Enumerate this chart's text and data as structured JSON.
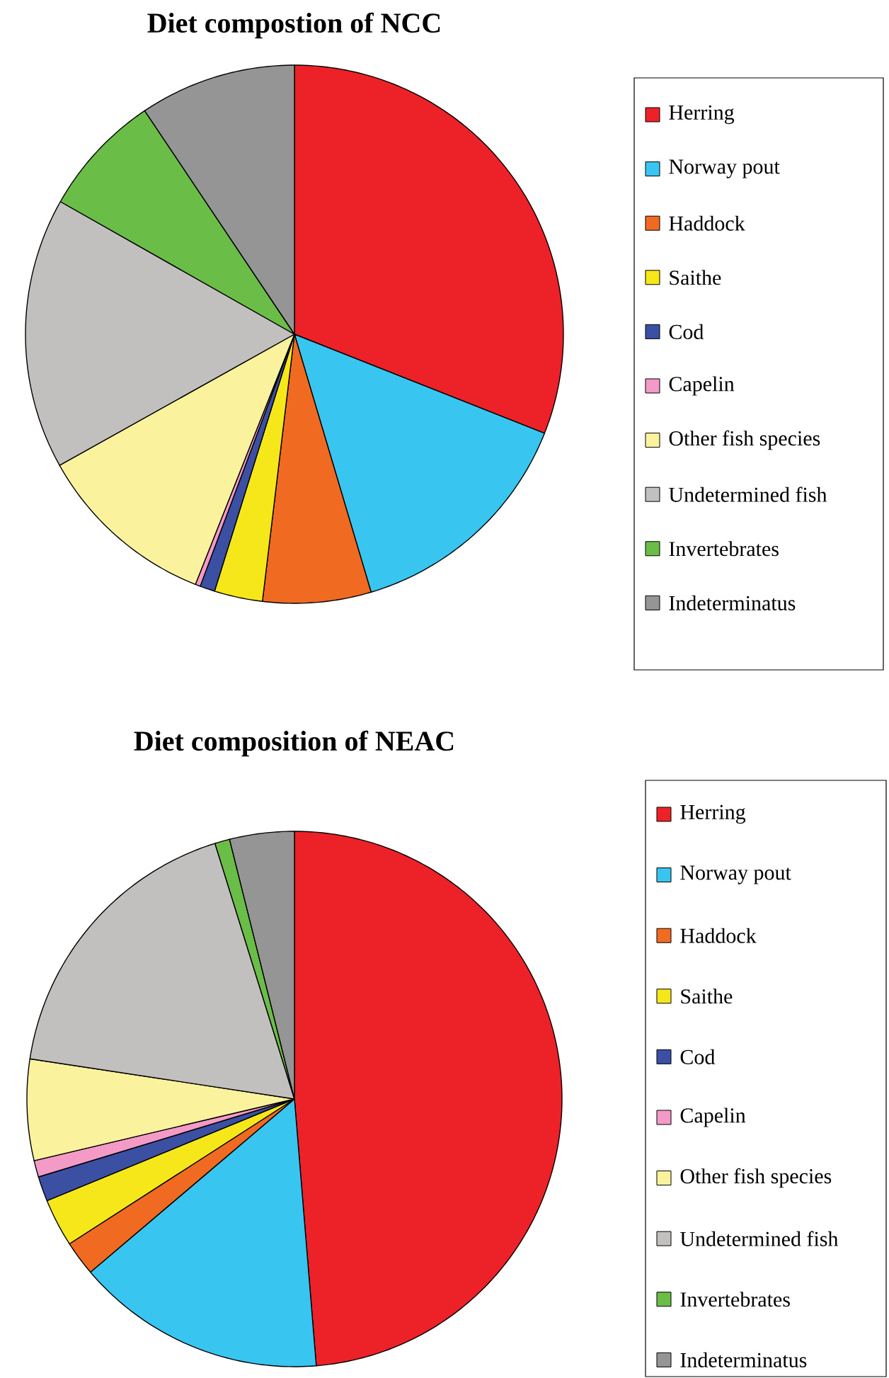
{
  "chart_data": [
    {
      "type": "pie",
      "title": "Diet compostion of NCC",
      "legend": "right",
      "categories": [
        "Herring",
        "Norway pout",
        "Haddock",
        "Saithe",
        "Cod",
        "Capelin",
        "Other fish species",
        "Undetermined fish",
        "Invertebrates",
        "Indeterminatus"
      ],
      "values": [
        31.0,
        14.4,
        6.5,
        2.9,
        0.9,
        0.3,
        10.9,
        16.3,
        7.4,
        9.4
      ],
      "colors": [
        "#ed2228",
        "#38c5f0",
        "#f06a22",
        "#f5e71a",
        "#3b4fa3",
        "#f49ac6",
        "#faf29c",
        "#c2c0bf",
        "#6abd46",
        "#959595"
      ]
    },
    {
      "type": "pie",
      "title": "Diet composition of NEAC",
      "legend": "right",
      "categories": [
        "Herring",
        "Norway pout",
        "Haddock",
        "Saithe",
        "Cod",
        "Capelin",
        "Other fish species",
        "Undetermined fish",
        "Invertebrates",
        "Indeterminatus"
      ],
      "values": [
        48.7,
        15.1,
        2.1,
        2.9,
        1.5,
        1.0,
        6.1,
        17.8,
        0.9,
        3.9
      ],
      "colors": [
        "#ed2228",
        "#38c5f0",
        "#f06a22",
        "#f5e71a",
        "#3b4fa3",
        "#f49ac6",
        "#faf29c",
        "#c2c0bf",
        "#6abd46",
        "#959595"
      ]
    }
  ]
}
